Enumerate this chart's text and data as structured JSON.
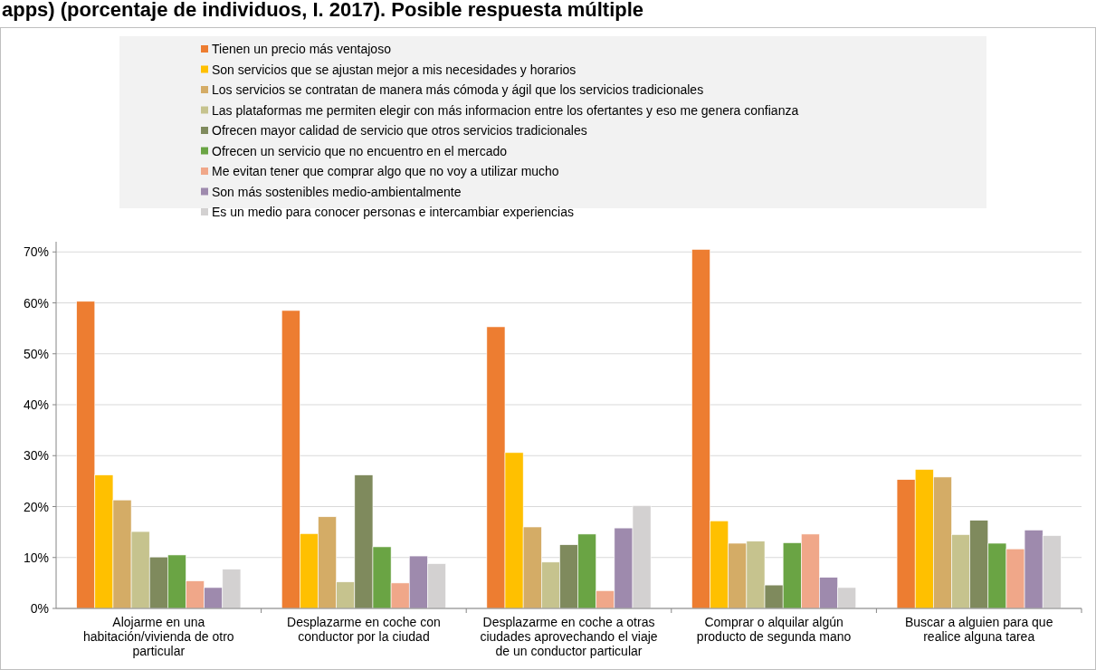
{
  "chart_data": {
    "type": "bar",
    "title": "apps) (porcentaje de individuos, I. 2017). Posible respuesta múltiple",
    "categories": [
      "Alojarme en una habitación/vivienda de otro particular",
      "Desplazarme en coche con conductor por la ciudad",
      "Desplazarme en coche a otras ciudades aprovechando el viaje de un conductor particular",
      "Comprar o alquilar algún producto de segunda mano",
      "Buscar a alguien para que realice alguna tarea"
    ],
    "series": [
      {
        "name": "Tienen un precio más ventajoso",
        "color": "#ed7d31",
        "values": [
          60.3,
          58.5,
          55.3,
          70.5,
          25.3
        ]
      },
      {
        "name": "Son servicios que se ajustan mejor a mis necesidades y horarios",
        "color": "#ffc000",
        "values": [
          26.2,
          14.7,
          30.6,
          17.2,
          27.3
        ]
      },
      {
        "name": "Los servicios se contratan de manera más cómoda y ágil que los servicios tradicionales",
        "color": "#d4ac66",
        "values": [
          21.3,
          18.0,
          16.0,
          12.8,
          25.8
        ]
      },
      {
        "name": "Las plataformas me permiten elegir con más informacion entre los ofertantes y eso me genera confianza",
        "color": "#c6c38e",
        "values": [
          15.1,
          5.2,
          9.1,
          13.2,
          14.5
        ]
      },
      {
        "name": "Ofrecen mayor calidad de servicio que otros servicios tradicionales",
        "color": "#7f8a5d",
        "values": [
          10.1,
          26.2,
          12.5,
          4.6,
          17.3
        ]
      },
      {
        "name": "Ofrecen un servicio que no encuentro en el mercado",
        "color": "#6aa444",
        "values": [
          10.5,
          12.1,
          14.6,
          12.9,
          12.8
        ]
      },
      {
        "name": "Me evitan tener que comprar algo que no voy a utilizar mucho",
        "color": "#f0a789",
        "values": [
          5.4,
          5.0,
          3.5,
          14.6,
          11.7
        ]
      },
      {
        "name": "Son más sostenibles medio-ambientalmente",
        "color": "#9e8aad",
        "values": [
          4.1,
          10.3,
          15.8,
          6.1,
          15.4
        ]
      },
      {
        "name": "Es un medio para conocer personas e intercambiar experiencias",
        "color": "#d3d1d1",
        "values": [
          7.7,
          8.8,
          20.2,
          4.1,
          14.3
        ]
      }
    ],
    "ylim": [
      0,
      72
    ],
    "yticks": [
      {
        "value": 0,
        "label": "0%"
      },
      {
        "value": 10,
        "label": "10%"
      },
      {
        "value": 20,
        "label": "20%"
      },
      {
        "value": 30,
        "label": "30%"
      },
      {
        "value": 40,
        "label": "40%"
      },
      {
        "value": 50,
        "label": "50%"
      },
      {
        "value": 60,
        "label": "60%"
      },
      {
        "value": 70,
        "label": "70%"
      }
    ],
    "grid": "y",
    "legend": "top"
  }
}
